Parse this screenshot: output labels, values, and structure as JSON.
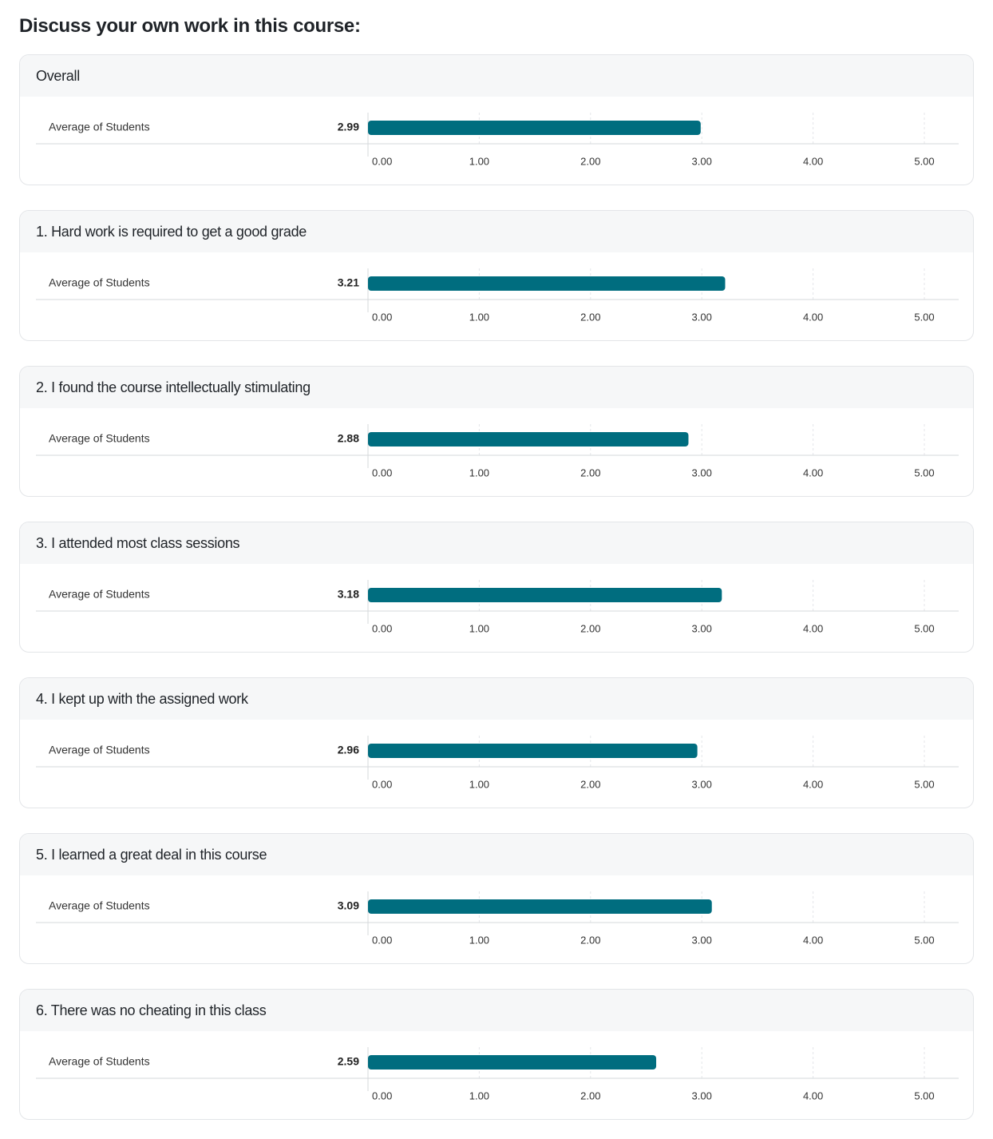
{
  "page": {
    "title": "Discuss your own work in this course:"
  },
  "colors": {
    "bar": "#006d7f",
    "grid": "#e4e6e9",
    "axis": "#d6d8db",
    "header_bg": "#f6f7f8"
  },
  "chart_data": [
    {
      "type": "bar",
      "title": "Overall",
      "categories": [
        "Average of Students"
      ],
      "values": [
        2.99
      ],
      "value_labels": [
        "2.99"
      ],
      "xlim": [
        0,
        5
      ],
      "xticks": [
        "0.00",
        "1.00",
        "2.00",
        "3.00",
        "4.00",
        "5.00"
      ],
      "orientation": "horizontal",
      "grid": true
    },
    {
      "type": "bar",
      "title": "1. Hard work is required to get a good grade",
      "categories": [
        "Average of Students"
      ],
      "values": [
        3.21
      ],
      "value_labels": [
        "3.21"
      ],
      "xlim": [
        0,
        5
      ],
      "xticks": [
        "0.00",
        "1.00",
        "2.00",
        "3.00",
        "4.00",
        "5.00"
      ],
      "orientation": "horizontal",
      "grid": true
    },
    {
      "type": "bar",
      "title": "2. I found the course intellectually stimulating",
      "categories": [
        "Average of Students"
      ],
      "values": [
        2.88
      ],
      "value_labels": [
        "2.88"
      ],
      "xlim": [
        0,
        5
      ],
      "xticks": [
        "0.00",
        "1.00",
        "2.00",
        "3.00",
        "4.00",
        "5.00"
      ],
      "orientation": "horizontal",
      "grid": true
    },
    {
      "type": "bar",
      "title": "3. I attended most class sessions",
      "categories": [
        "Average of Students"
      ],
      "values": [
        3.18
      ],
      "value_labels": [
        "3.18"
      ],
      "xlim": [
        0,
        5
      ],
      "xticks": [
        "0.00",
        "1.00",
        "2.00",
        "3.00",
        "4.00",
        "5.00"
      ],
      "orientation": "horizontal",
      "grid": true
    },
    {
      "type": "bar",
      "title": "4. I kept up with the assigned work",
      "categories": [
        "Average of Students"
      ],
      "values": [
        2.96
      ],
      "value_labels": [
        "2.96"
      ],
      "xlim": [
        0,
        5
      ],
      "xticks": [
        "0.00",
        "1.00",
        "2.00",
        "3.00",
        "4.00",
        "5.00"
      ],
      "orientation": "horizontal",
      "grid": true
    },
    {
      "type": "bar",
      "title": "5. I learned a great deal in this course",
      "categories": [
        "Average of Students"
      ],
      "values": [
        3.09
      ],
      "value_labels": [
        "3.09"
      ],
      "xlim": [
        0,
        5
      ],
      "xticks": [
        "0.00",
        "1.00",
        "2.00",
        "3.00",
        "4.00",
        "5.00"
      ],
      "orientation": "horizontal",
      "grid": true
    },
    {
      "type": "bar",
      "title": "6. There was no cheating in this class",
      "categories": [
        "Average of Students"
      ],
      "values": [
        2.59
      ],
      "value_labels": [
        "2.59"
      ],
      "xlim": [
        0,
        5
      ],
      "xticks": [
        "0.00",
        "1.00",
        "2.00",
        "3.00",
        "4.00",
        "5.00"
      ],
      "orientation": "horizontal",
      "grid": true
    }
  ]
}
